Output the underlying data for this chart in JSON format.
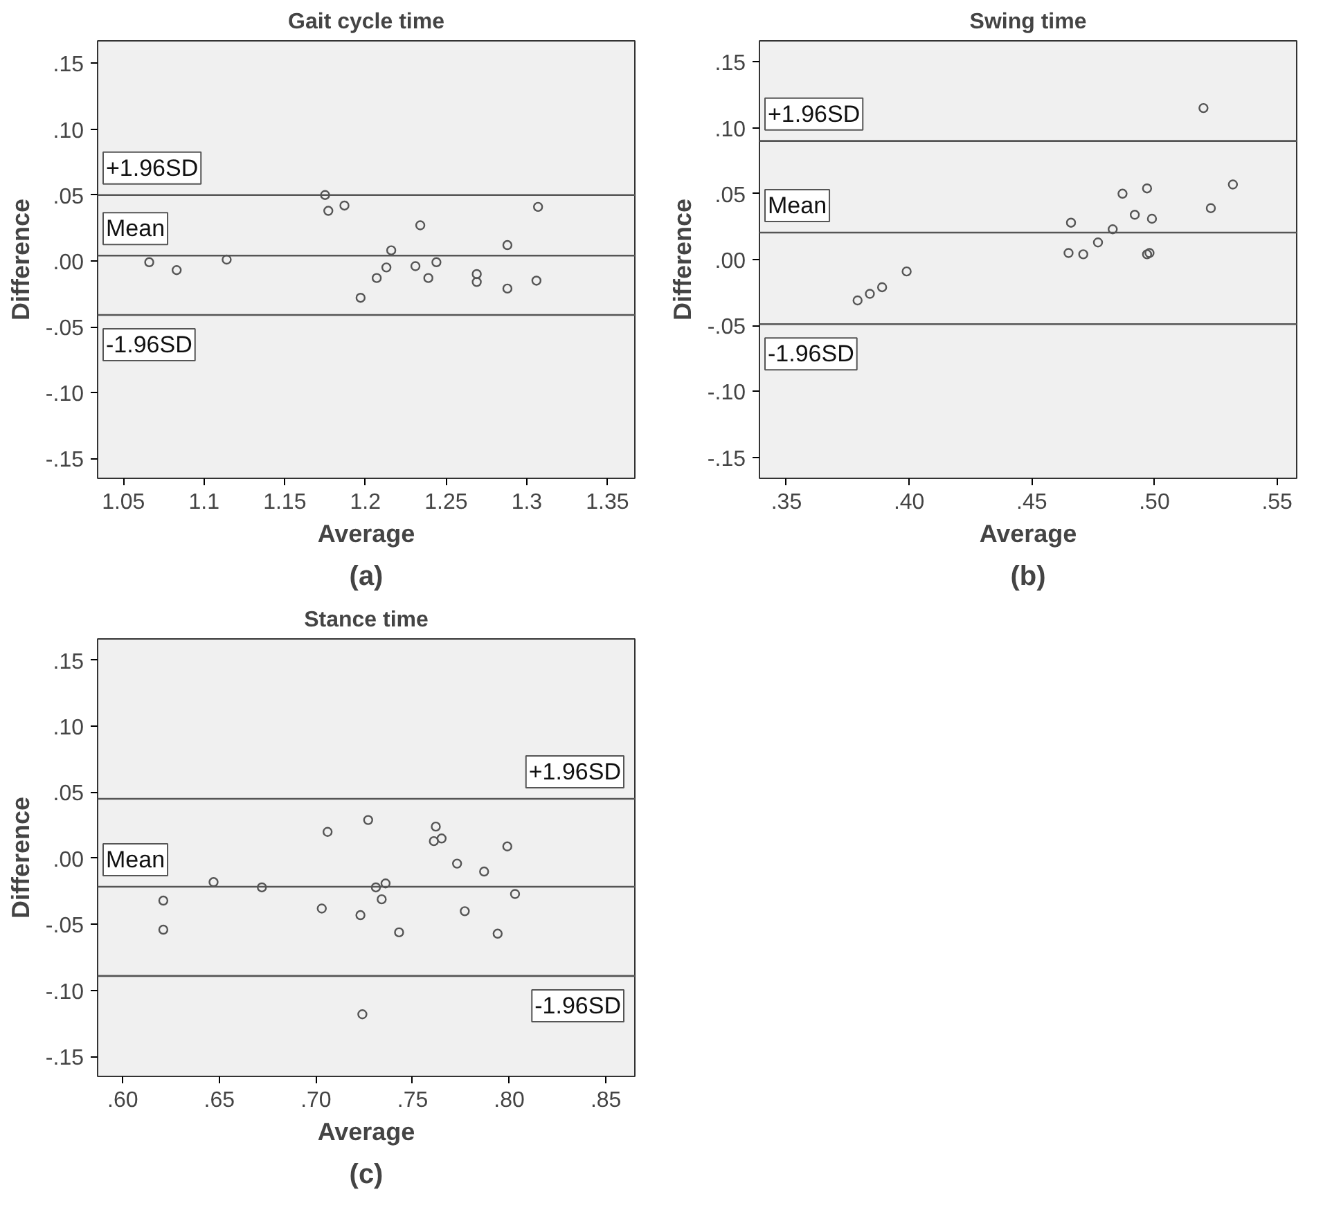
{
  "chart_data": [
    {
      "type": "scatter",
      "title": "Gait cycle time",
      "xlabel": "Average",
      "ylabel": "Difference",
      "annotations": [
        "(a)"
      ],
      "marker": "circle",
      "color": "#555555",
      "x": [
        1.066,
        1.083,
        1.114,
        1.175,
        1.177,
        1.187,
        1.197,
        1.207,
        1.213,
        1.216,
        1.231,
        1.234,
        1.239,
        1.244,
        1.269,
        1.269,
        1.288,
        1.288,
        1.306,
        1.307
      ],
      "values": [
        -0.001,
        -0.007,
        0.001,
        0.05,
        0.038,
        0.042,
        -0.028,
        -0.013,
        -0.005,
        0.008,
        -0.004,
        0.027,
        -0.013,
        -0.001,
        -0.01,
        -0.016,
        0.012,
        -0.021,
        -0.015,
        0.041
      ],
      "xlim": [
        1.034,
        1.367
      ],
      "xticks": [
        1.05,
        1.1,
        1.15,
        1.2,
        1.25,
        1.3,
        1.35
      ],
      "ylim": [
        -0.165,
        0.167
      ],
      "yticks": [
        {
          "value": -0.15,
          "label": "-.15"
        },
        {
          "value": -0.1,
          "label": "-.10"
        },
        {
          "value": -0.05,
          "label": "-.05"
        },
        {
          "value": 0,
          "label": ".00"
        },
        {
          "value": 0.05,
          "label": ".05"
        },
        {
          "value": 0.1,
          "label": ".10"
        },
        {
          "value": 0.15,
          "label": ".15"
        }
      ],
      "ref_lines": [
        {
          "axis": "y",
          "value": 0.05,
          "label": "+1.96SD",
          "color": "#555555"
        },
        {
          "axis": "y",
          "value": 0.004,
          "label": "Mean",
          "color": "#555555"
        },
        {
          "axis": "y",
          "value": -0.041,
          "label": "-1.96SD",
          "color": "#555555"
        }
      ]
    },
    {
      "type": "scatter",
      "title": "Swing time",
      "xlabel": "Average",
      "ylabel": "Difference",
      "annotations": [
        "(b)"
      ],
      "marker": "circle",
      "color": "#555555",
      "x": [
        0.379,
        0.384,
        0.389,
        0.399,
        0.465,
        0.466,
        0.471,
        0.477,
        0.483,
        0.487,
        0.492,
        0.497,
        0.499,
        0.497,
        0.498,
        0.52,
        0.523,
        0.532
      ],
      "values": [
        -0.031,
        -0.026,
        -0.021,
        -0.009,
        0.005,
        0.028,
        0.004,
        0.013,
        0.023,
        0.05,
        0.034,
        0.054,
        0.031,
        0.004,
        0.005,
        0.115,
        0.039,
        0.057
      ],
      "xlim": [
        0.339,
        0.558
      ],
      "xticks": [
        {
          "value": 0.35,
          "label": ".35"
        },
        {
          "value": 0.4,
          "label": ".40"
        },
        {
          "value": 0.45,
          "label": ".45"
        },
        {
          "value": 0.5,
          "label": ".50"
        },
        {
          "value": 0.55,
          "label": ".55"
        }
      ],
      "ylim": [
        -0.166,
        0.166
      ],
      "yticks": [
        {
          "value": -0.15,
          "label": "-.15"
        },
        {
          "value": -0.1,
          "label": "-.10"
        },
        {
          "value": -0.05,
          "label": "-.05"
        },
        {
          "value": 0,
          "label": ".00"
        },
        {
          "value": 0.05,
          "label": ".05"
        },
        {
          "value": 0.1,
          "label": ".10"
        },
        {
          "value": 0.15,
          "label": ".15"
        }
      ],
      "ref_lines": [
        {
          "axis": "y",
          "value": 0.09,
          "label": "+1.96SD",
          "color": "#555555"
        },
        {
          "axis": "y",
          "value": 0.0205,
          "label": "Mean",
          "color": "#555555"
        },
        {
          "axis": "y",
          "value": -0.049,
          "label": "-1.96SD",
          "color": "#555555"
        }
      ]
    },
    {
      "type": "scatter",
      "title": "Stance time",
      "xlabel": "Average",
      "ylabel": "Difference",
      "annotations": [
        "(c)"
      ],
      "marker": "circle",
      "color": "#555555",
      "x": [
        0.621,
        0.621,
        0.647,
        0.672,
        0.703,
        0.706,
        0.723,
        0.724,
        0.727,
        0.731,
        0.734,
        0.736,
        0.743,
        0.761,
        0.762,
        0.765,
        0.773,
        0.777,
        0.787,
        0.794,
        0.799,
        0.803
      ],
      "values": [
        -0.032,
        -0.054,
        -0.018,
        -0.022,
        -0.038,
        0.02,
        -0.043,
        -0.118,
        0.029,
        -0.022,
        -0.031,
        -0.019,
        -0.056,
        0.013,
        0.024,
        0.015,
        -0.004,
        -0.04,
        -0.01,
        -0.057,
        0.009,
        -0.027
      ],
      "xlim": [
        0.587,
        0.865
      ],
      "xticks": [
        {
          "value": 0.6,
          "label": ".60"
        },
        {
          "value": 0.65,
          "label": ".65"
        },
        {
          "value": 0.7,
          "label": ".70"
        },
        {
          "value": 0.75,
          "label": ".75"
        },
        {
          "value": 0.8,
          "label": ".80"
        },
        {
          "value": 0.85,
          "label": ".85"
        }
      ],
      "ylim": [
        -0.165,
        0.166
      ],
      "yticks": [
        {
          "value": -0.15,
          "label": "-.15"
        },
        {
          "value": -0.1,
          "label": "-.10"
        },
        {
          "value": -0.05,
          "label": "-.05"
        },
        {
          "value": 0,
          "label": ".00"
        },
        {
          "value": 0.05,
          "label": ".05"
        },
        {
          "value": 0.1,
          "label": ".10"
        },
        {
          "value": 0.15,
          "label": ".15"
        }
      ],
      "ref_lines": [
        {
          "axis": "y",
          "value": 0.045,
          "label": "+1.96SD",
          "color": "#555555"
        },
        {
          "axis": "y",
          "value": -0.0215,
          "label": "Mean",
          "color": "#555555"
        },
        {
          "axis": "y",
          "value": -0.089,
          "label": "-1.96SD",
          "color": "#555555"
        }
      ]
    }
  ]
}
